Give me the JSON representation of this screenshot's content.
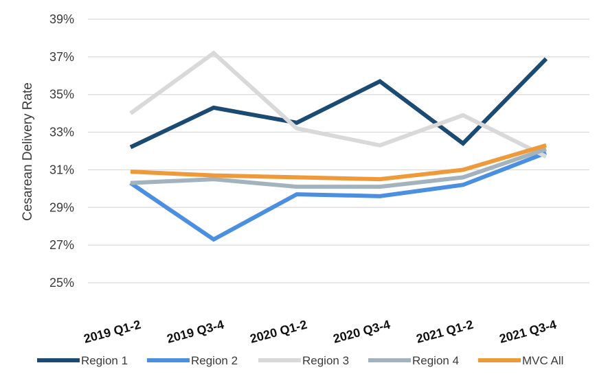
{
  "chart_data": {
    "type": "line",
    "title": "",
    "xlabel": "",
    "ylabel": "Cesarean Delivery Rate",
    "categories": [
      "2019 Q1-2",
      "2019 Q3-4",
      "2020 Q1-2",
      "2020 Q3-4",
      "2021 Q1-2",
      "2021 Q3-4"
    ],
    "ylim": [
      25,
      39
    ],
    "yticks": [
      25,
      27,
      29,
      31,
      33,
      35,
      37,
      39
    ],
    "ytick_labels": [
      "25%",
      "27%",
      "29%",
      "31%",
      "33%",
      "35%",
      "37%",
      "39%"
    ],
    "grid": true,
    "legend_position": "bottom",
    "series": [
      {
        "name": "Region 1",
        "color": "#1b4b72",
        "values": [
          32.2,
          34.3,
          33.5,
          35.7,
          32.4,
          36.9
        ]
      },
      {
        "name": "Region 2",
        "color": "#4a8fe0",
        "values": [
          30.3,
          27.3,
          29.7,
          29.6,
          30.2,
          31.9
        ]
      },
      {
        "name": "Region 3",
        "color": "#d9d9d9",
        "values": [
          34.0,
          37.2,
          33.2,
          32.3,
          33.9,
          31.7
        ]
      },
      {
        "name": "Region 4",
        "color": "#a3b3bd",
        "values": [
          30.3,
          30.5,
          30.1,
          30.1,
          30.6,
          32.1
        ]
      },
      {
        "name": "MVC All",
        "color": "#ef9a3a",
        "values": [
          30.9,
          30.7,
          30.6,
          30.5,
          31.0,
          32.3
        ]
      }
    ]
  }
}
